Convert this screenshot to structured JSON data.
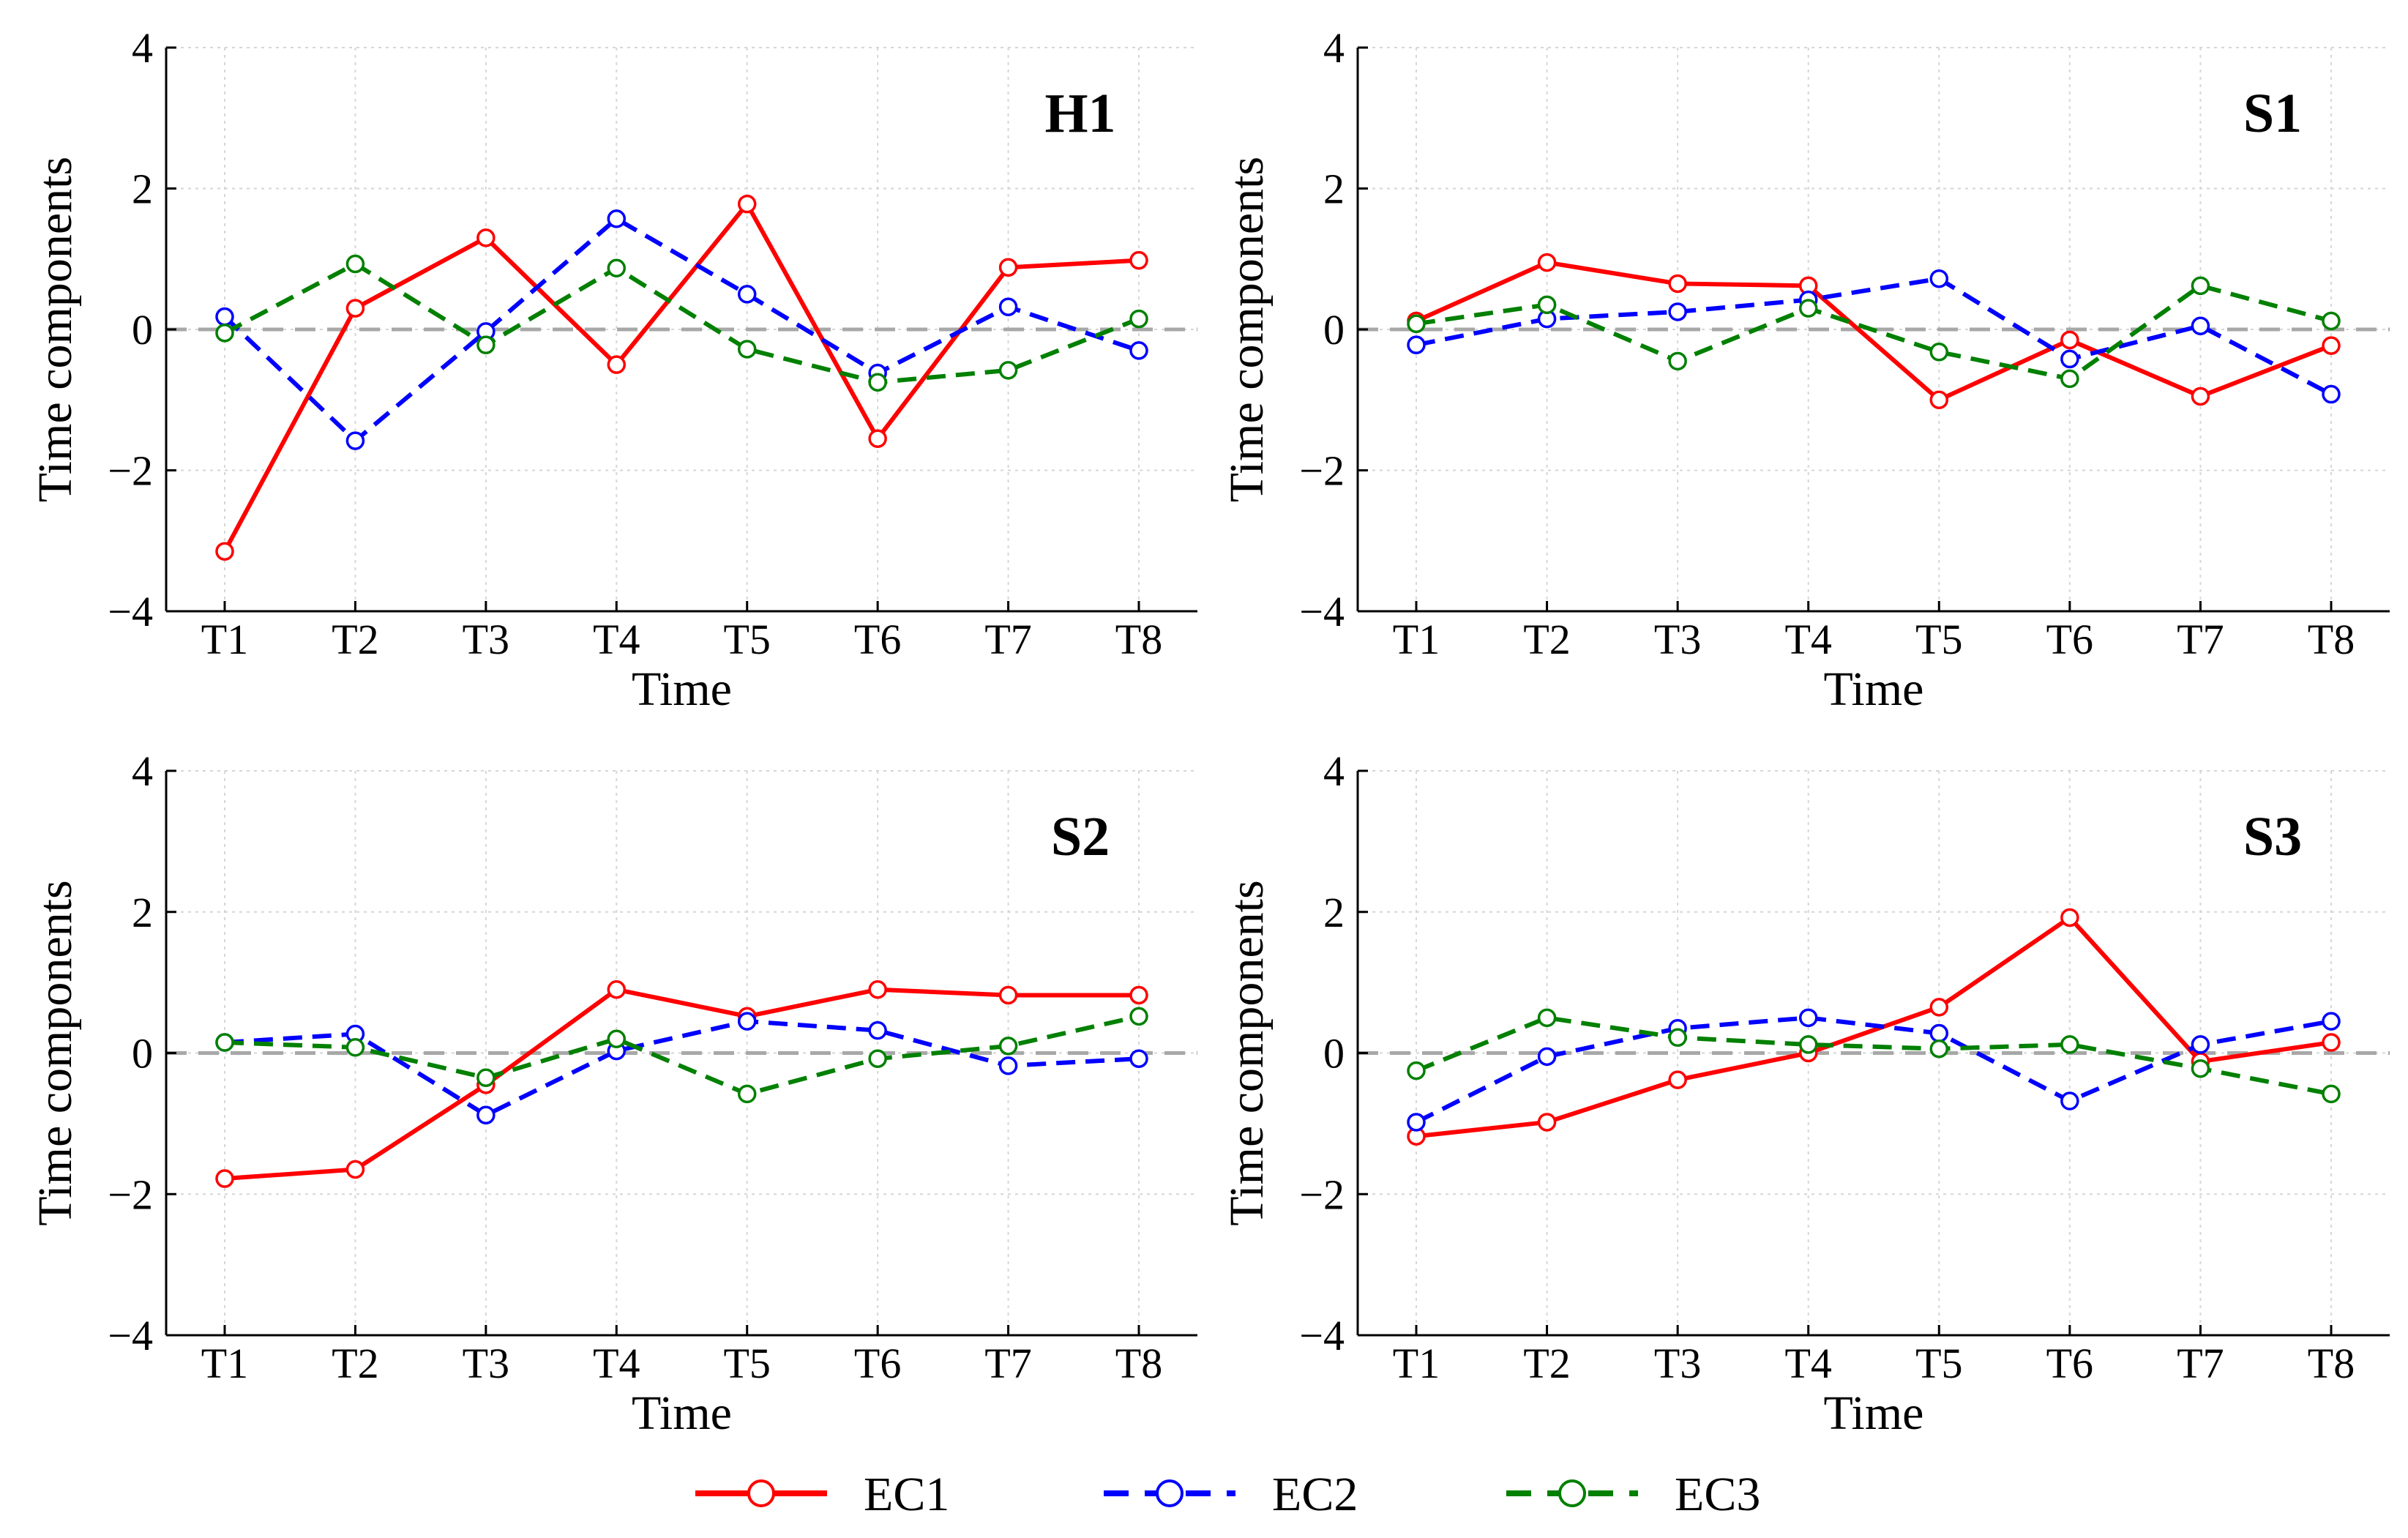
{
  "chart_data": [
    {
      "type": "line",
      "title": "H1",
      "xlabel": "Time",
      "ylabel": "Time components",
      "categories": [
        "T1",
        "T2",
        "T3",
        "T4",
        "T5",
        "T6",
        "T7",
        "T8"
      ],
      "ylim": [
        -4,
        4
      ],
      "yticks": [
        "−4",
        "−2",
        "0",
        "2",
        "4"
      ],
      "grid": true,
      "series": [
        {
          "name": "EC1",
          "values": [
            -3.15,
            0.3,
            1.3,
            -0.5,
            1.78,
            -1.55,
            0.88,
            0.98
          ]
        },
        {
          "name": "EC2",
          "values": [
            0.18,
            -1.58,
            -0.03,
            1.57,
            0.5,
            -0.62,
            0.32,
            -0.3
          ]
        },
        {
          "name": "EC3",
          "values": [
            -0.05,
            0.93,
            -0.22,
            0.87,
            -0.28,
            -0.75,
            -0.58,
            0.15
          ]
        }
      ]
    },
    {
      "type": "line",
      "title": "S1",
      "xlabel": "Time",
      "ylabel": "Time components",
      "categories": [
        "T1",
        "T2",
        "T3",
        "T4",
        "T5",
        "T6",
        "T7",
        "T8"
      ],
      "ylim": [
        -4,
        4
      ],
      "yticks": [
        "−4",
        "−2",
        "0",
        "2",
        "4"
      ],
      "grid": true,
      "series": [
        {
          "name": "EC1",
          "values": [
            0.12,
            0.95,
            0.65,
            0.62,
            -1.0,
            -0.15,
            -0.95,
            -0.23
          ]
        },
        {
          "name": "EC2",
          "values": [
            -0.22,
            0.15,
            0.25,
            0.42,
            0.72,
            -0.42,
            0.05,
            -0.92
          ]
        },
        {
          "name": "EC3",
          "values": [
            0.08,
            0.35,
            -0.45,
            0.3,
            -0.32,
            -0.7,
            0.62,
            0.12
          ]
        }
      ]
    },
    {
      "type": "line",
      "title": "S2",
      "xlabel": "Time",
      "ylabel": "Time components",
      "categories": [
        "T1",
        "T2",
        "T3",
        "T4",
        "T5",
        "T6",
        "T7",
        "T8"
      ],
      "ylim": [
        -4,
        4
      ],
      "yticks": [
        "−4",
        "−2",
        "0",
        "2",
        "4"
      ],
      "grid": true,
      "series": [
        {
          "name": "EC1",
          "values": [
            -1.78,
            -1.65,
            -0.45,
            0.9,
            0.52,
            0.9,
            0.82,
            0.82
          ]
        },
        {
          "name": "EC2",
          "values": [
            0.15,
            0.27,
            -0.88,
            0.03,
            0.45,
            0.32,
            -0.18,
            -0.08
          ]
        },
        {
          "name": "EC3",
          "values": [
            0.15,
            0.08,
            -0.35,
            0.2,
            -0.58,
            -0.08,
            0.1,
            0.52
          ]
        }
      ]
    },
    {
      "type": "line",
      "title": "S3",
      "xlabel": "Time",
      "ylabel": "Time components",
      "categories": [
        "T1",
        "T2",
        "T3",
        "T4",
        "T5",
        "T6",
        "T7",
        "T8"
      ],
      "ylim": [
        -4,
        4
      ],
      "yticks": [
        "−4",
        "−2",
        "0",
        "2",
        "4"
      ],
      "grid": true,
      "series": [
        {
          "name": "EC1",
          "values": [
            -1.18,
            -0.98,
            -0.38,
            0.0,
            0.65,
            1.92,
            -0.12,
            0.15
          ]
        },
        {
          "name": "EC2",
          "values": [
            -0.98,
            -0.05,
            0.35,
            0.5,
            0.28,
            -0.68,
            0.12,
            0.45
          ]
        },
        {
          "name": "EC3",
          "values": [
            -0.25,
            0.5,
            0.22,
            0.12,
            0.06,
            0.12,
            -0.22,
            -0.58
          ]
        }
      ]
    }
  ],
  "legend": [
    {
      "name": "EC1",
      "color": "#ff0000",
      "dash": "solid"
    },
    {
      "name": "EC2",
      "color": "#0000ff",
      "dash": "dashed"
    },
    {
      "name": "EC3",
      "color": "#008000",
      "dash": "dashed"
    }
  ]
}
